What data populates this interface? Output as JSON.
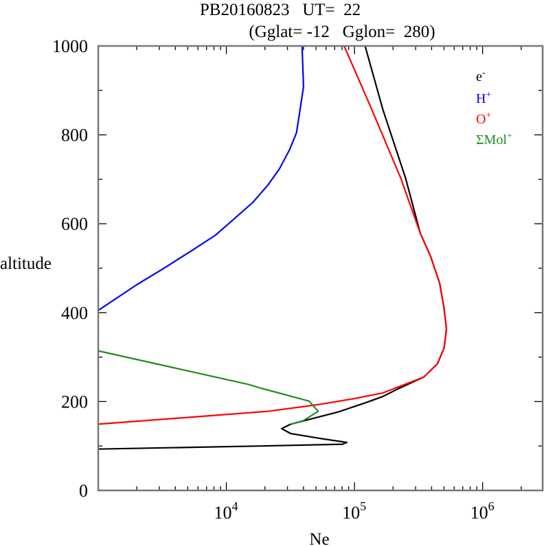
{
  "chart_data": {
    "type": "line",
    "title": "PB20160823   UT=  22",
    "subtitle": "(Gglat= -12   Gglon=  280)",
    "xlabel": "Ne",
    "ylabel": "altitude",
    "xscale": "log",
    "xlim": [
      1000,
      2940000
    ],
    "ylim": [
      0,
      1000
    ],
    "grid": false,
    "legend_position": "top-right",
    "x_ticks": [
      {
        "value": 10000,
        "base": "10",
        "exp": "4"
      },
      {
        "value": 100000,
        "base": "10",
        "exp": "5"
      },
      {
        "value": 1000000,
        "base": "10",
        "exp": "6"
      }
    ],
    "y_ticks": [
      {
        "value": 0,
        "label": "0"
      },
      {
        "value": 200,
        "label": "200"
      },
      {
        "value": 400,
        "label": "400"
      },
      {
        "value": 600,
        "label": "600"
      },
      {
        "value": 800,
        "label": "800"
      },
      {
        "value": 1000,
        "label": "1000"
      }
    ],
    "series": [
      {
        "name": "e-",
        "label_base": "e",
        "label_sup": "-",
        "color": "#000000",
        "points": [
          [
            1000,
            93
          ],
          [
            18700,
            100
          ],
          [
            80400,
            104
          ],
          [
            87300,
            108
          ],
          [
            56600,
            116
          ],
          [
            31800,
            128
          ],
          [
            27000,
            139
          ],
          [
            31800,
            149
          ],
          [
            52100,
            165
          ],
          [
            75500,
            177
          ],
          [
            124000,
            198
          ],
          [
            165000,
            211
          ],
          [
            220000,
            229
          ],
          [
            347000,
            255
          ],
          [
            444000,
            285
          ],
          [
            501000,
            321
          ],
          [
            522000,
            363
          ],
          [
            501000,
            409
          ],
          [
            462000,
            466
          ],
          [
            392000,
            527
          ],
          [
            326000,
            579
          ],
          [
            251000,
            702
          ],
          [
            167000,
            856
          ],
          [
            121000,
            1000
          ]
        ]
      },
      {
        "name": "H+",
        "label_base": "H",
        "label_sup": "+",
        "color": "#0000ff",
        "points": [
          [
            1000,
            405
          ],
          [
            2000,
            463
          ],
          [
            3300,
            501
          ],
          [
            5400,
            540
          ],
          [
            8200,
            574
          ],
          [
            11400,
            610
          ],
          [
            16100,
            648
          ],
          [
            21100,
            687
          ],
          [
            25900,
            723
          ],
          [
            31200,
            767
          ],
          [
            35300,
            805
          ],
          [
            37600,
            856
          ],
          [
            40000,
            908
          ],
          [
            39000,
            1000
          ]
        ]
      },
      {
        "name": "O+",
        "label_base": "O",
        "label_sup": "+",
        "color": "#ff0000",
        "points": [
          [
            1000,
            149
          ],
          [
            21000,
            178
          ],
          [
            52000,
            193
          ],
          [
            97000,
            206
          ],
          [
            165000,
            219
          ],
          [
            220000,
            233
          ],
          [
            347000,
            255
          ],
          [
            444000,
            285
          ],
          [
            501000,
            321
          ],
          [
            522000,
            363
          ],
          [
            501000,
            409
          ],
          [
            462000,
            466
          ],
          [
            392000,
            527
          ],
          [
            326000,
            579
          ],
          [
            230000,
            702
          ],
          [
            137000,
            856
          ],
          [
            83000,
            1000
          ]
        ]
      },
      {
        "name": "ΣMol+",
        "label_base": "ΣMol",
        "label_sup": "+",
        "color": "#228b22",
        "points": [
          [
            1000,
            314
          ],
          [
            14600,
            239
          ],
          [
            18700,
            230
          ],
          [
            44300,
            201
          ],
          [
            52100,
            178
          ],
          [
            39800,
            157
          ],
          [
            31800,
            149
          ]
        ]
      }
    ]
  }
}
